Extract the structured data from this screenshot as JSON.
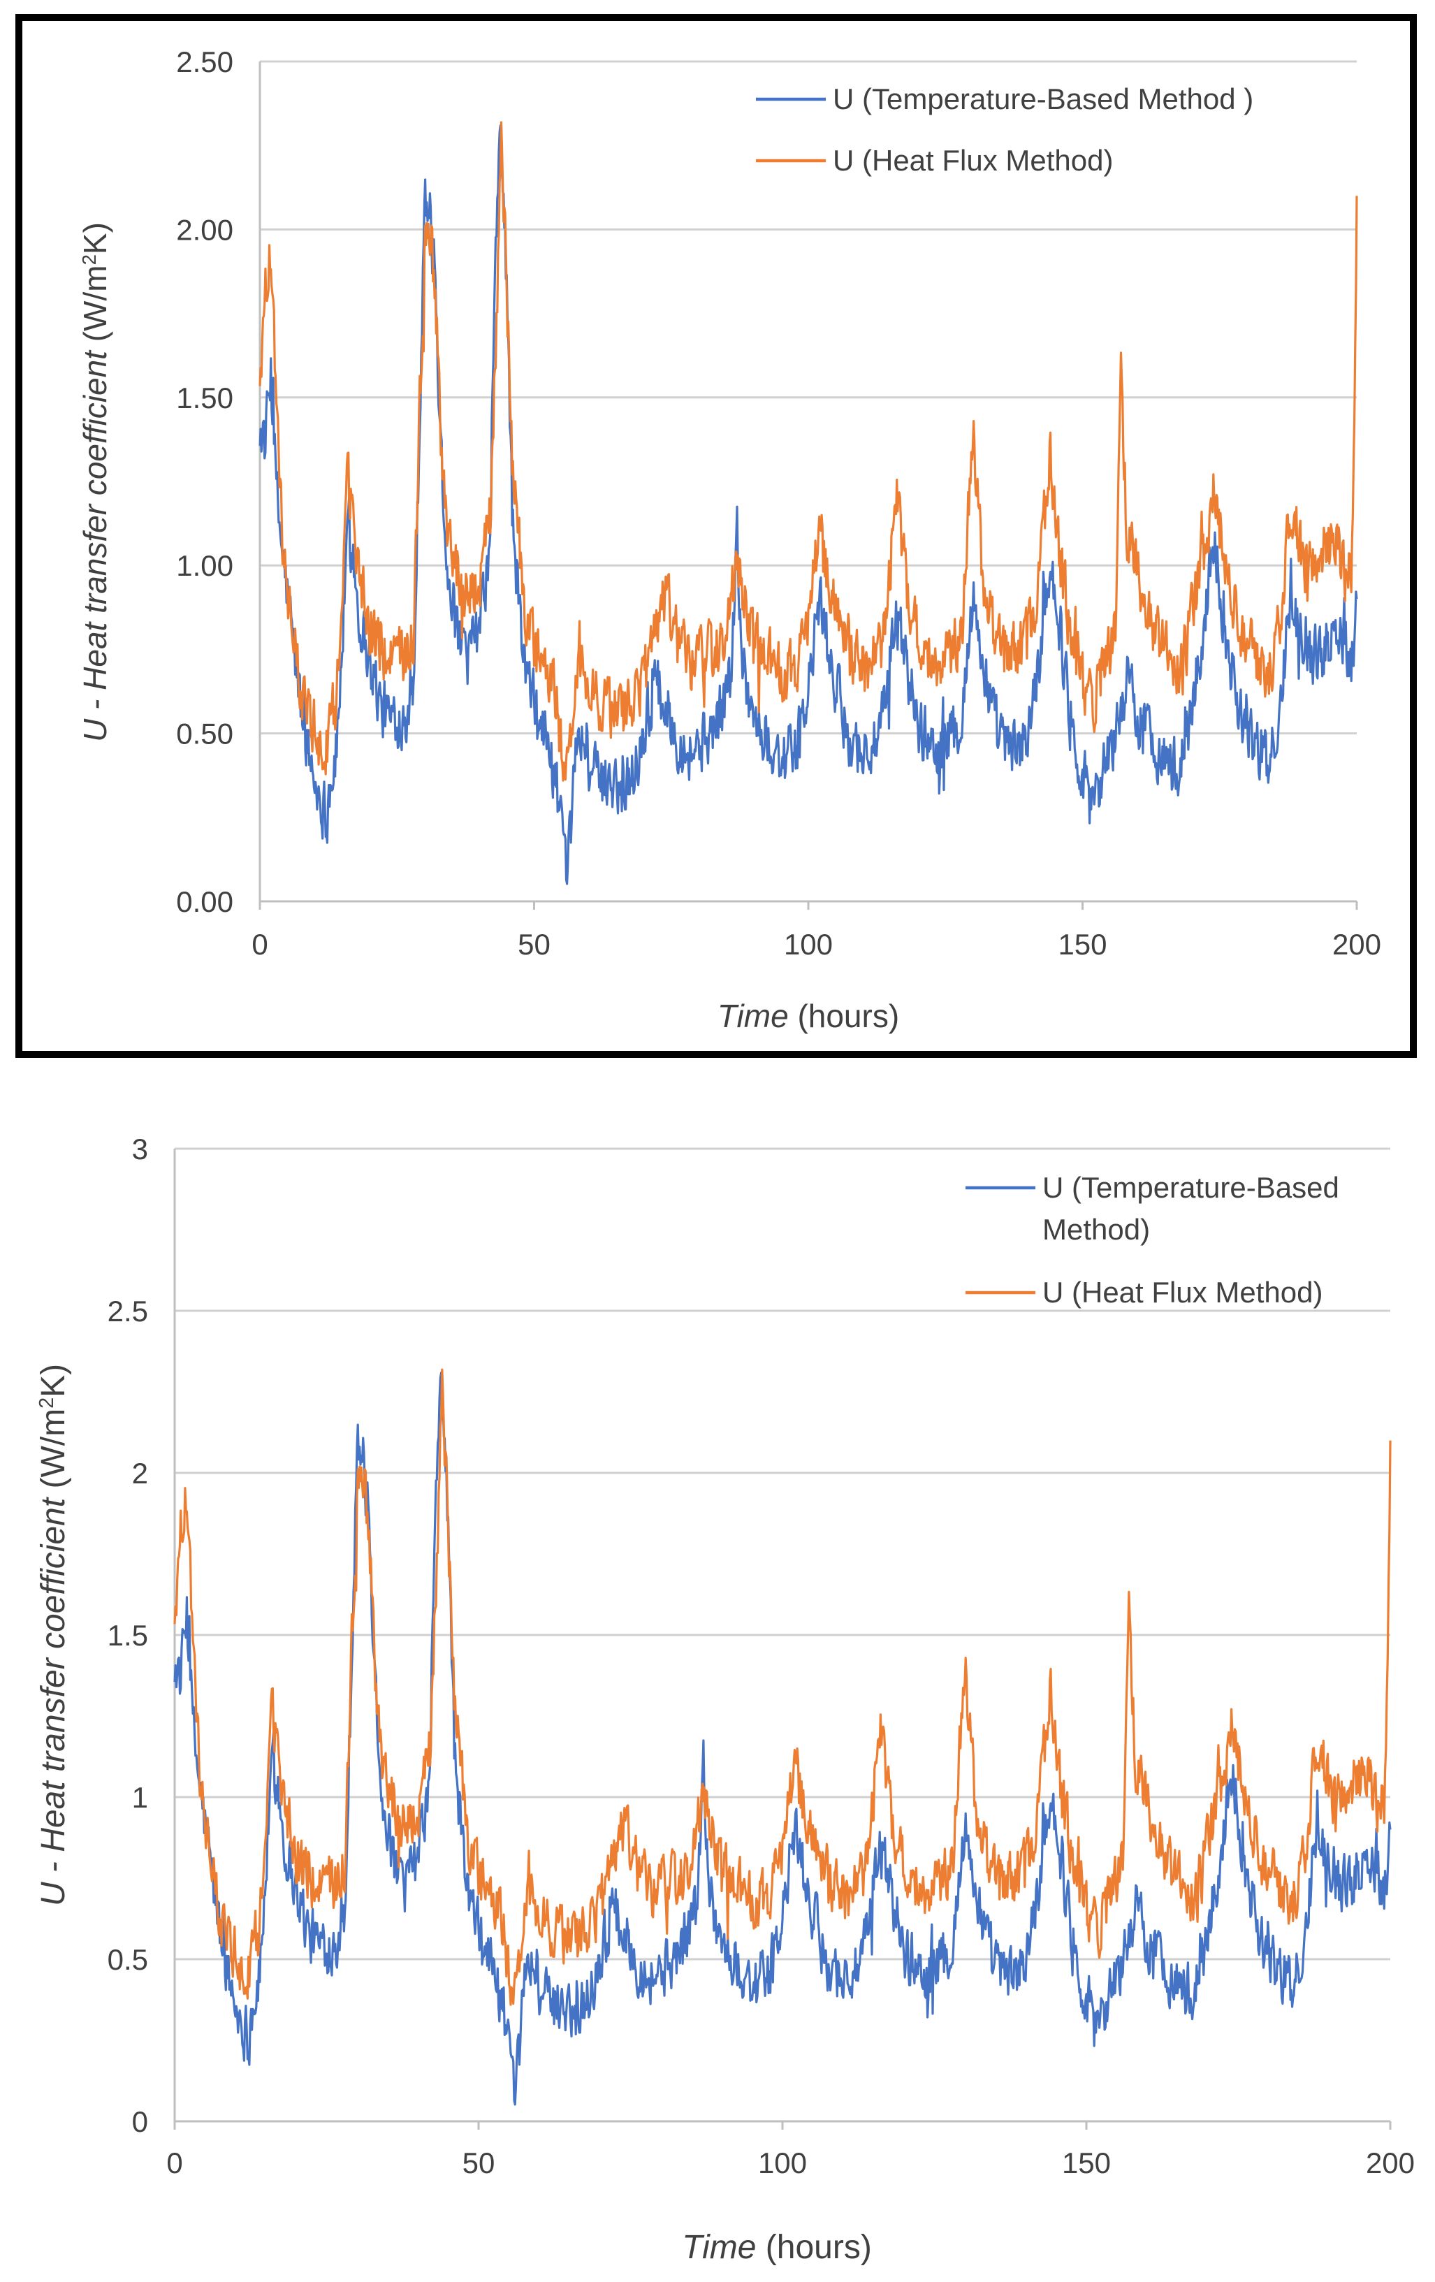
{
  "chart_data": [
    {
      "type": "line",
      "xlabel_italic": "Time",
      "xlabel_unit": "(hours)",
      "ylabel_main": "U -  Heat transfer coefficient",
      "ylabel_unit_pre": "(W/m",
      "ylabel_unit_sup": "2",
      "ylabel_unit_post": "K)",
      "xlim": [
        0,
        200
      ],
      "ylim": [
        0,
        2.5
      ],
      "xticks": [
        0,
        50,
        100,
        150,
        200
      ],
      "xtick_labels": [
        "0",
        "50",
        "100",
        "150",
        "200"
      ],
      "yticks": [
        0,
        0.5,
        1.0,
        1.5,
        2.0,
        2.5
      ],
      "ytick_labels": [
        "0.00",
        "0.50",
        "1.00",
        "1.50",
        "2.00",
        "2.50"
      ],
      "grid": true,
      "legend_position": "top-right",
      "legend": [
        "U (Temperature-Based Method )",
        "U (Heat Flux Method)"
      ],
      "series": [
        {
          "name": "U (Temperature-Based Method )",
          "color": "#4472C4",
          "points": [
            [
              0,
              1.42
            ],
            [
              1,
              1.36
            ],
            [
              2,
              1.58
            ],
            [
              3,
              1.22
            ],
            [
              4,
              1.05
            ],
            [
              6,
              0.78
            ],
            [
              8,
              0.52
            ],
            [
              10,
              0.35
            ],
            [
              12,
              0.27
            ],
            [
              14,
              0.45
            ],
            [
              16,
              1.08
            ],
            [
              17,
              1.04
            ],
            [
              18,
              0.86
            ],
            [
              20,
              0.72
            ],
            [
              22,
              0.58
            ],
            [
              24,
              0.54
            ],
            [
              26,
              0.55
            ],
            [
              28,
              0.62
            ],
            [
              29,
              1.35
            ],
            [
              30,
              2.1
            ],
            [
              31,
              2.04
            ],
            [
              32,
              1.82
            ],
            [
              33,
              1.35
            ],
            [
              34,
              1.05
            ],
            [
              36,
              0.78
            ],
            [
              38,
              0.72
            ],
            [
              40,
              0.82
            ],
            [
              42,
              1.05
            ],
            [
              43,
              1.98
            ],
            [
              44,
              2.3
            ],
            [
              45,
              1.85
            ],
            [
              46,
              1.15
            ],
            [
              48,
              0.72
            ],
            [
              50,
              0.58
            ],
            [
              52,
              0.5
            ],
            [
              54,
              0.36
            ],
            [
              55,
              0.22
            ],
            [
              56,
              0.02
            ],
            [
              57,
              0.3
            ],
            [
              58,
              0.52
            ],
            [
              60,
              0.42
            ],
            [
              62,
              0.34
            ],
            [
              64,
              0.38
            ],
            [
              66,
              0.33
            ],
            [
              68,
              0.38
            ],
            [
              70,
              0.5
            ],
            [
              72,
              0.66
            ],
            [
              74,
              0.58
            ],
            [
              76,
              0.5
            ],
            [
              78,
              0.45
            ],
            [
              80,
              0.46
            ],
            [
              82,
              0.5
            ],
            [
              84,
              0.56
            ],
            [
              86,
              0.68
            ],
            [
              87,
              1.1
            ],
            [
              88,
              0.72
            ],
            [
              90,
              0.55
            ],
            [
              92,
              0.48
            ],
            [
              94,
              0.45
            ],
            [
              96,
              0.42
            ],
            [
              98,
              0.46
            ],
            [
              100,
              0.62
            ],
            [
              102,
              0.9
            ],
            [
              104,
              0.72
            ],
            [
              106,
              0.56
            ],
            [
              108,
              0.48
            ],
            [
              110,
              0.44
            ],
            [
              112,
              0.46
            ],
            [
              114,
              0.56
            ],
            [
              116,
              0.86
            ],
            [
              118,
              0.7
            ],
            [
              120,
              0.52
            ],
            [
              122,
              0.48
            ],
            [
              124,
              0.46
            ],
            [
              126,
              0.48
            ],
            [
              128,
              0.56
            ],
            [
              130,
              0.9
            ],
            [
              132,
              0.7
            ],
            [
              134,
              0.52
            ],
            [
              136,
              0.46
            ],
            [
              138,
              0.44
            ],
            [
              140,
              0.5
            ],
            [
              142,
              0.7
            ],
            [
              144,
              1.02
            ],
            [
              146,
              0.8
            ],
            [
              148,
              0.52
            ],
            [
              150,
              0.38
            ],
            [
              152,
              0.32
            ],
            [
              154,
              0.4
            ],
            [
              156,
              0.5
            ],
            [
              158,
              0.66
            ],
            [
              160,
              0.56
            ],
            [
              162,
              0.5
            ],
            [
              164,
              0.45
            ],
            [
              166,
              0.4
            ],
            [
              168,
              0.4
            ],
            [
              170,
              0.58
            ],
            [
              172,
              0.8
            ],
            [
              174,
              1.1
            ],
            [
              176,
              0.8
            ],
            [
              178,
              0.62
            ],
            [
              180,
              0.52
            ],
            [
              182,
              0.45
            ],
            [
              184,
              0.4
            ],
            [
              186,
              0.55
            ],
            [
              188,
              0.95
            ],
            [
              190,
              0.82
            ],
            [
              192,
              0.72
            ],
            [
              194,
              0.75
            ],
            [
              196,
              0.82
            ],
            [
              198,
              0.78
            ],
            [
              199,
              0.72
            ],
            [
              200,
              0.9
            ]
          ]
        },
        {
          "name": "U (Heat Flux Method)",
          "color": "#ED7D31",
          "points": [
            [
              0,
              1.55
            ],
            [
              1,
              1.85
            ],
            [
              2,
              1.92
            ],
            [
              3,
              1.5
            ],
            [
              4,
              1.1
            ],
            [
              6,
              0.78
            ],
            [
              8,
              0.58
            ],
            [
              10,
              0.48
            ],
            [
              12,
              0.46
            ],
            [
              14,
              0.6
            ],
            [
              16,
              1.25
            ],
            [
              17,
              1.18
            ],
            [
              18,
              0.98
            ],
            [
              20,
              0.82
            ],
            [
              22,
              0.74
            ],
            [
              24,
              0.7
            ],
            [
              26,
              0.72
            ],
            [
              28,
              0.78
            ],
            [
              29,
              1.4
            ],
            [
              30,
              1.95
            ],
            [
              31,
              2.02
            ],
            [
              32,
              1.78
            ],
            [
              33,
              1.4
            ],
            [
              34,
              1.1
            ],
            [
              36,
              0.98
            ],
            [
              38,
              0.9
            ],
            [
              40,
              0.96
            ],
            [
              42,
              1.15
            ],
            [
              43,
              1.65
            ],
            [
              44,
              2.25
            ],
            [
              45,
              1.85
            ],
            [
              46,
              1.3
            ],
            [
              48,
              0.9
            ],
            [
              50,
              0.76
            ],
            [
              52,
              0.7
            ],
            [
              54,
              0.62
            ],
            [
              55,
              0.44
            ],
            [
              56,
              0.4
            ],
            [
              57,
              0.52
            ],
            [
              58,
              0.7
            ],
            [
              60,
              0.66
            ],
            [
              62,
              0.6
            ],
            [
              64,
              0.58
            ],
            [
              66,
              0.56
            ],
            [
              68,
              0.58
            ],
            [
              70,
              0.66
            ],
            [
              72,
              0.8
            ],
            [
              74,
              0.9
            ],
            [
              76,
              0.78
            ],
            [
              78,
              0.72
            ],
            [
              80,
              0.72
            ],
            [
              82,
              0.74
            ],
            [
              84,
              0.78
            ],
            [
              86,
              0.9
            ],
            [
              87,
              1.05
            ],
            [
              88,
              0.9
            ],
            [
              90,
              0.78
            ],
            [
              92,
              0.72
            ],
            [
              94,
              0.7
            ],
            [
              96,
              0.68
            ],
            [
              98,
              0.72
            ],
            [
              100,
              0.84
            ],
            [
              102,
              1.1
            ],
            [
              104,
              0.92
            ],
            [
              106,
              0.8
            ],
            [
              108,
              0.74
            ],
            [
              110,
              0.7
            ],
            [
              112,
              0.72
            ],
            [
              114,
              0.8
            ],
            [
              116,
              1.22
            ],
            [
              118,
              0.92
            ],
            [
              120,
              0.8
            ],
            [
              122,
              0.74
            ],
            [
              124,
              0.72
            ],
            [
              126,
              0.74
            ],
            [
              128,
              0.8
            ],
            [
              130,
              1.43
            ],
            [
              132,
              0.92
            ],
            [
              134,
              0.8
            ],
            [
              136,
              0.76
            ],
            [
              138,
              0.74
            ],
            [
              140,
              0.78
            ],
            [
              142,
              0.92
            ],
            [
              144,
              1.33
            ],
            [
              146,
              1.0
            ],
            [
              148,
              0.78
            ],
            [
              150,
              0.66
            ],
            [
              152,
              0.6
            ],
            [
              154,
              0.7
            ],
            [
              156,
              0.82
            ],
            [
              157,
              1.62
            ],
            [
              158,
              1.1
            ],
            [
              160,
              1.0
            ],
            [
              162,
              0.86
            ],
            [
              164,
              0.78
            ],
            [
              166,
              0.72
            ],
            [
              168,
              0.68
            ],
            [
              170,
              0.86
            ],
            [
              172,
              1.02
            ],
            [
              174,
              1.23
            ],
            [
              176,
              1.0
            ],
            [
              178,
              0.86
            ],
            [
              180,
              0.78
            ],
            [
              182,
              0.72
            ],
            [
              184,
              0.68
            ],
            [
              186,
              0.82
            ],
            [
              188,
              1.2
            ],
            [
              190,
              1.02
            ],
            [
              192,
              0.98
            ],
            [
              194,
              1.05
            ],
            [
              196,
              1.08
            ],
            [
              198,
              0.95
            ],
            [
              199,
              0.98
            ],
            [
              199.5,
              1.3
            ],
            [
              200,
              2.1
            ]
          ]
        }
      ]
    },
    {
      "type": "line",
      "xlabel_italic": "Time",
      "xlabel_unit": "(hours)",
      "ylabel_main": "U -  Heat transfer coefficient",
      "ylabel_unit_pre": "(W/m",
      "ylabel_unit_sup": "2",
      "ylabel_unit_post": "K)",
      "xlim": [
        0,
        200
      ],
      "ylim": [
        0,
        3
      ],
      "xticks": [
        0,
        50,
        100,
        150,
        200
      ],
      "xtick_labels": [
        "0",
        "50",
        "100",
        "150",
        "200"
      ],
      "yticks": [
        0,
        0.5,
        1,
        1.5,
        2,
        2.5,
        3
      ],
      "ytick_labels": [
        "0",
        "0.5",
        "1",
        "1.5",
        "2",
        "2.5",
        "3"
      ],
      "grid": true,
      "legend_position": "top-right",
      "legend": [
        "U (Temperature-Based Method)",
        "U (Heat Flux Method)"
      ],
      "legend_line1": "U (Temperature-Based",
      "legend_line1b": "Method)",
      "legend_line2": "U (Heat Flux Method)"
    }
  ]
}
